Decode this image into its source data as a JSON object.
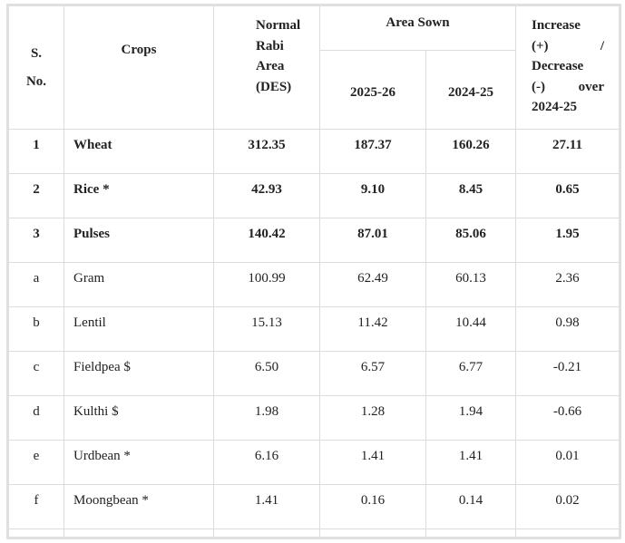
{
  "table": {
    "headers": {
      "sno": [
        "S.",
        "No."
      ],
      "crops": "Crops",
      "normal": [
        "Normal",
        "Rabi",
        "Area",
        "(DES)"
      ],
      "area_sown": "Area Sown",
      "year_current": "2025-26",
      "year_previous": "2024-25",
      "change": [
        "Increase",
        "(+)          /",
        "Decrease",
        "(-)        over",
        "2024-25"
      ]
    },
    "rows": [
      {
        "sno": "1",
        "crop": "Wheat",
        "normal": "312.35",
        "current": "187.37",
        "previous": "160.26",
        "change": "27.11",
        "bold": true
      },
      {
        "sno": "2",
        "crop": "Rice *",
        "normal": "42.93",
        "current": "9.10",
        "previous": "8.45",
        "change": "0.65",
        "bold": true
      },
      {
        "sno": "3",
        "crop": "Pulses",
        "normal": "140.42",
        "current": "87.01",
        "previous": "85.06",
        "change": "1.95",
        "bold": true
      },
      {
        "sno": "a",
        "crop": "Gram",
        "normal": "100.99",
        "current": "62.49",
        "previous": "60.13",
        "change": "2.36",
        "bold": false
      },
      {
        "sno": "b",
        "crop": "Lentil",
        "normal": "15.13",
        "current": "11.42",
        "previous": "10.44",
        "change": "0.98",
        "bold": false
      },
      {
        "sno": "c",
        "crop": "Fieldpea $",
        "normal": "6.50",
        "current": "6.57",
        "previous": "6.77",
        "change": "-0.21",
        "bold": false
      },
      {
        "sno": "d",
        "crop": "Kulthi $",
        "normal": "1.98",
        "current": "1.28",
        "previous": "1.94",
        "change": "-0.66",
        "bold": false
      },
      {
        "sno": "e",
        "crop": "Urdbean *",
        "normal": "6.16",
        "current": "1.41",
        "previous": "1.41",
        "change": "0.01",
        "bold": false
      },
      {
        "sno": "f",
        "crop": "Moongbean *",
        "normal": "1.41",
        "current": "0.16",
        "previous": "0.14",
        "change": "0.02",
        "bold": false
      }
    ]
  }
}
